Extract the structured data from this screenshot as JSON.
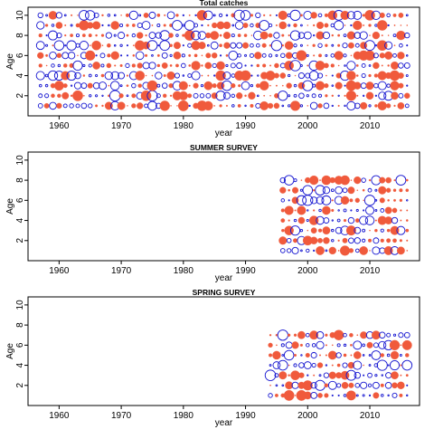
{
  "chart_data": [
    {
      "type": "scatter",
      "title": "Total catches",
      "xlabel": "year",
      "ylabel": "Age",
      "xlim": [
        1955,
        2018
      ],
      "ylim": [
        0,
        10.8
      ],
      "xticks": [
        1960,
        1970,
        1980,
        1990,
        2000,
        2010
      ],
      "yticks": [
        2,
        4,
        6,
        8,
        10
      ],
      "x_range": [
        1957,
        2016
      ],
      "ages": [
        1,
        2,
        3,
        4,
        5,
        6,
        7,
        8,
        9,
        10
      ],
      "marker": "bubble residual (filled = positive, open = negative)",
      "seed": 11
    },
    {
      "type": "scatter",
      "title": "SUMMER SURVEY",
      "xlabel": "year",
      "ylabel": "Age",
      "xlim": [
        1955,
        2018
      ],
      "ylim": [
        0,
        10.8
      ],
      "xticks": [
        1960,
        1970,
        1980,
        1990,
        2000,
        2010
      ],
      "yticks": [
        2,
        4,
        6,
        8,
        10
      ],
      "x_range": [
        1996,
        2016
      ],
      "ages": [
        1,
        2,
        3,
        4,
        5,
        6,
        7,
        8
      ],
      "marker": "bubble residual (filled = positive, open = negative)",
      "seed": 29
    },
    {
      "type": "scatter",
      "title": "SPRING SURVEY",
      "xlabel": "year",
      "ylabel": "Age",
      "xlim": [
        1955,
        2018
      ],
      "ylim": [
        0,
        10.8
      ],
      "xticks": [
        1960,
        1970,
        1980,
        1990,
        2000,
        2010
      ],
      "yticks": [
        2,
        4,
        6,
        8,
        10
      ],
      "x_range": [
        1994,
        2016
      ],
      "ages": [
        1,
        2,
        3,
        4,
        5,
        6,
        7
      ],
      "marker": "bubble residual (filled = positive, open = negative)",
      "seed": 47
    }
  ],
  "colors": {
    "positive": "#f05a3c",
    "negative": "#1515d0",
    "axis": "#000000"
  }
}
